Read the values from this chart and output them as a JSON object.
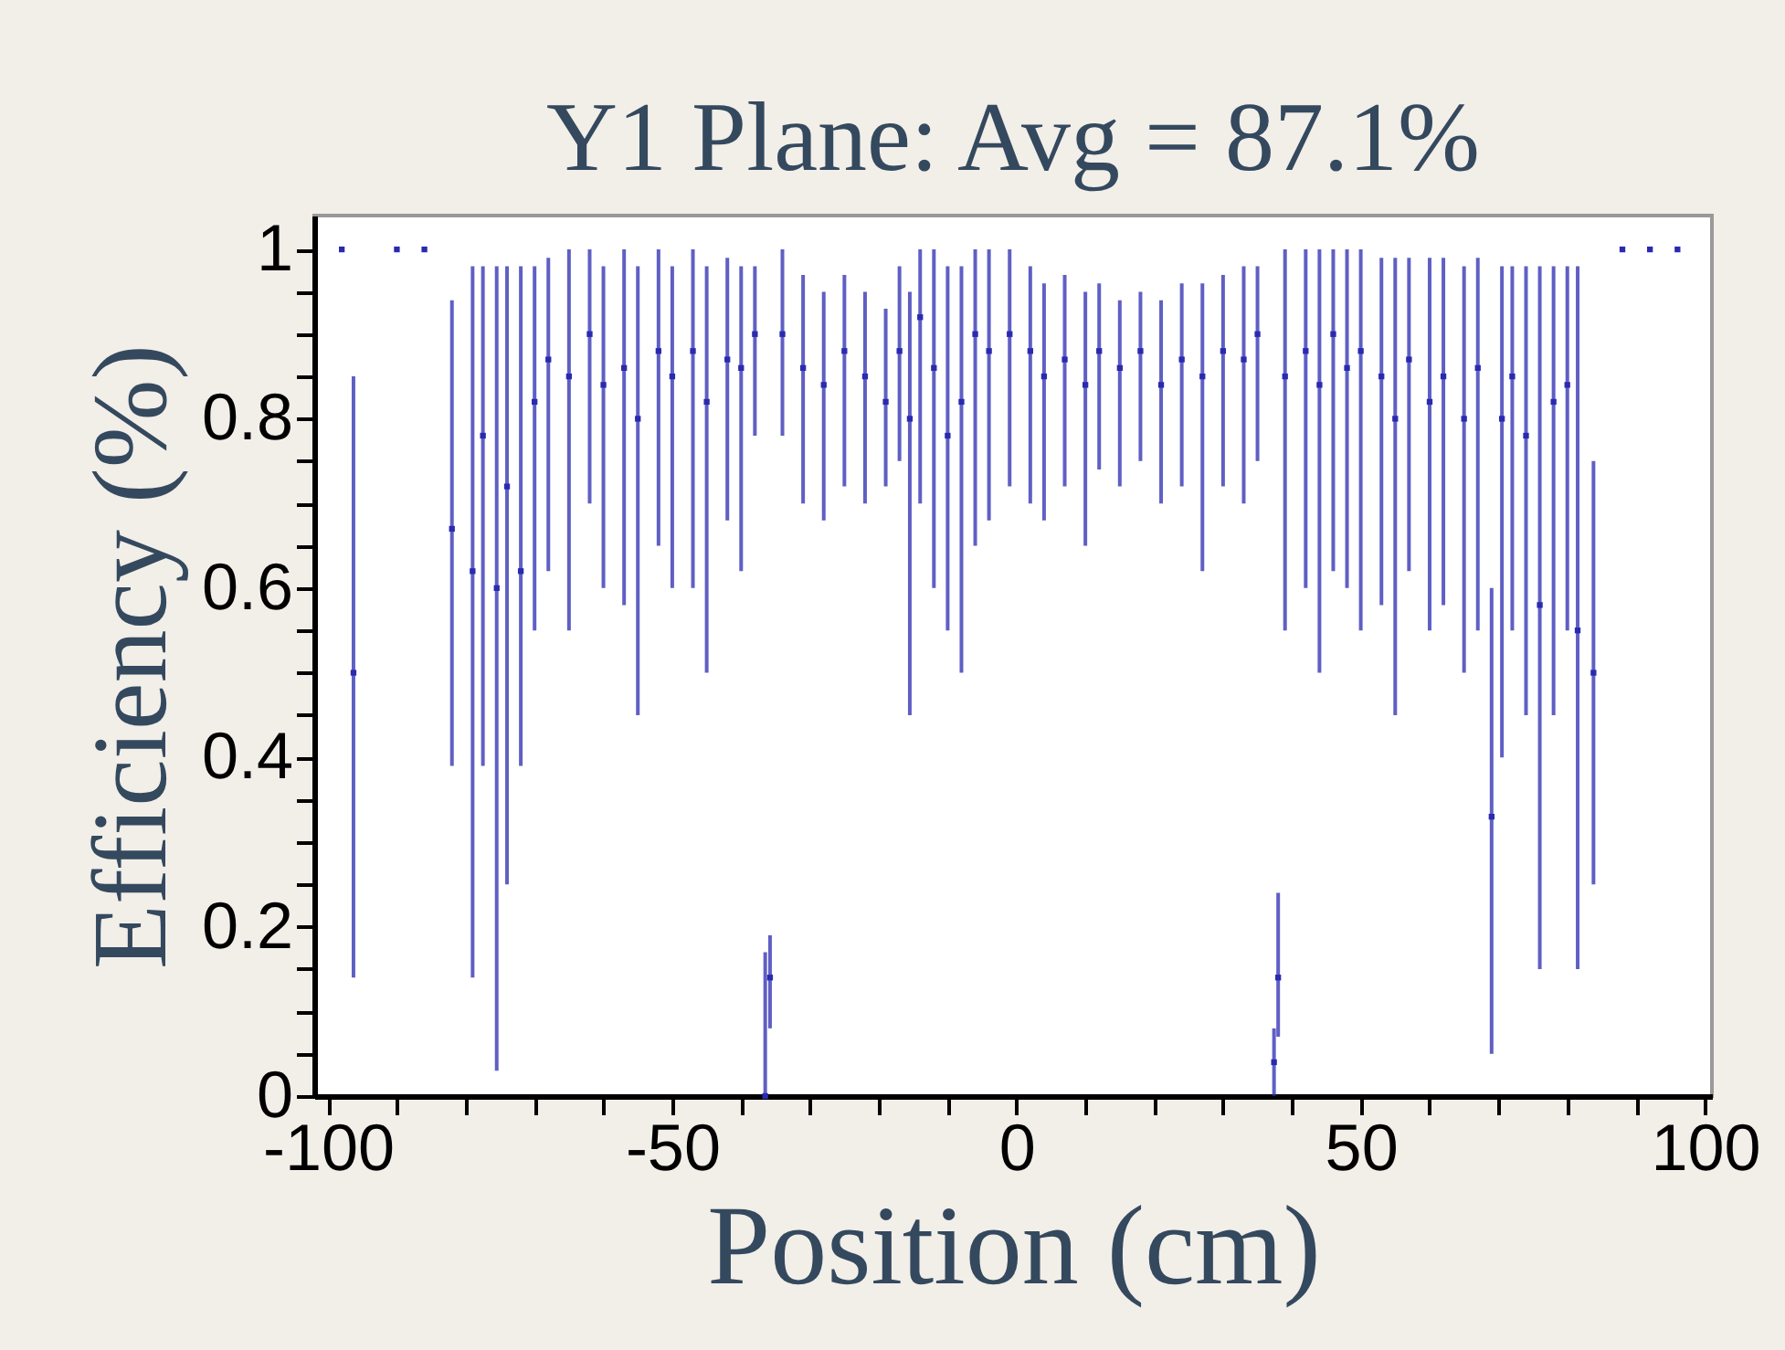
{
  "chart_data": {
    "type": "scatter",
    "title": "Y1 Plane: Avg = 87.1%",
    "xlabel": "Position (cm)",
    "ylabel": "Efficiency (%)",
    "xlim": [
      -102,
      101
    ],
    "ylim": [
      0,
      1.04
    ],
    "xticks": [
      -100,
      {
        "value": -90,
        "label": null
      },
      {
        "value": -80,
        "label": null
      },
      {
        "value": -70,
        "label": null
      },
      {
        "value": -60,
        "label": null
      },
      -50,
      {
        "value": -40,
        "label": null
      },
      {
        "value": -30,
        "label": null
      },
      {
        "value": -20,
        "label": null
      },
      {
        "value": -10,
        "label": null
      },
      0,
      {
        "value": 10,
        "label": null
      },
      {
        "value": 20,
        "label": null
      },
      {
        "value": 30,
        "label": null
      },
      {
        "value": 40,
        "label": null
      },
      50,
      {
        "value": 60,
        "label": null
      },
      {
        "value": 70,
        "label": null
      },
      {
        "value": 80,
        "label": null
      },
      {
        "value": 90,
        "label": null
      },
      100
    ],
    "yticks": [
      0,
      {
        "value": 0.05,
        "label": null
      },
      {
        "value": 0.1,
        "label": null
      },
      {
        "value": 0.15,
        "label": null
      },
      0.2,
      {
        "value": 0.25,
        "label": null
      },
      {
        "value": 0.3,
        "label": null
      },
      {
        "value": 0.35,
        "label": null
      },
      0.4,
      {
        "value": 0.45,
        "label": null
      },
      {
        "value": 0.5,
        "label": null
      },
      {
        "value": 0.55,
        "label": null
      },
      0.6,
      {
        "value": 0.65,
        "label": null
      },
      {
        "value": 0.7,
        "label": null
      },
      {
        "value": 0.75,
        "label": null
      },
      0.8,
      {
        "value": 0.85,
        "label": null
      },
      {
        "value": 0.9,
        "label": null
      },
      {
        "value": 0.95,
        "label": null
      },
      1
    ],
    "grid": false,
    "marker": "square",
    "series": [
      {
        "color": "#2a2ab0",
        "x": [
          -98,
          -96.3,
          -90,
          -86,
          -82,
          -79,
          -77.5,
          -75.5,
          -74,
          -72,
          -70,
          -68,
          -65,
          -62,
          -60,
          -57,
          -55,
          -52,
          -50,
          -47,
          -45,
          -42,
          -40,
          -38,
          -36.5,
          -35.8,
          -34,
          -31,
          -28,
          -25,
          -22,
          -19,
          -17,
          -15.5,
          -14,
          -12,
          -10,
          -8,
          -6,
          -4,
          -1,
          2,
          4,
          7,
          10,
          12,
          15,
          18,
          21,
          24,
          27,
          30,
          33,
          35,
          37.4,
          38,
          39,
          42,
          44,
          46,
          48,
          50,
          53,
          55,
          57,
          60,
          62,
          65,
          67,
          69,
          70.5,
          72,
          74,
          76,
          78,
          80,
          81.5,
          83.8,
          88,
          92,
          96
        ],
        "values": [
          1,
          0.5,
          1,
          1,
          0.67,
          0.62,
          0.78,
          0.6,
          0.72,
          0.62,
          0.82,
          0.87,
          0.85,
          0.9,
          0.84,
          0.86,
          0.8,
          0.88,
          0.85,
          0.88,
          0.82,
          0.87,
          0.86,
          0.9,
          0,
          0.14,
          0.9,
          0.86,
          0.84,
          0.88,
          0.85,
          0.82,
          0.88,
          0.8,
          0.92,
          0.86,
          0.78,
          0.82,
          0.9,
          0.88,
          0.9,
          0.88,
          0.85,
          0.87,
          0.84,
          0.88,
          0.86,
          0.88,
          0.84,
          0.87,
          0.85,
          0.88,
          0.87,
          0.9,
          0.04,
          0.14,
          0.85,
          0.88,
          0.84,
          0.9,
          0.86,
          0.88,
          0.85,
          0.8,
          0.87,
          0.82,
          0.85,
          0.8,
          0.86,
          0.33,
          0.8,
          0.85,
          0.78,
          0.58,
          0.82,
          0.84,
          0.55,
          0.5,
          1,
          1,
          1
        ],
        "errors": [
          null,
          [
            0.14,
            0.85
          ],
          null,
          null,
          [
            0.39,
            0.94
          ],
          [
            0.14,
            0.98
          ],
          [
            0.39,
            0.98
          ],
          [
            0.03,
            0.98
          ],
          [
            0.25,
            0.98
          ],
          [
            0.39,
            0.98
          ],
          [
            0.55,
            0.98
          ],
          [
            0.62,
            0.99
          ],
          [
            0.55,
            1
          ],
          [
            0.7,
            1
          ],
          [
            0.6,
            0.98
          ],
          [
            0.58,
            1
          ],
          [
            0.45,
            0.98
          ],
          [
            0.65,
            1
          ],
          [
            0.6,
            0.98
          ],
          [
            0.6,
            1
          ],
          [
            0.5,
            0.98
          ],
          [
            0.68,
            0.99
          ],
          [
            0.62,
            0.98
          ],
          [
            0.78,
            0.98
          ],
          [
            0,
            0.17
          ],
          [
            0.08,
            0.19
          ],
          [
            0.78,
            1
          ],
          [
            0.7,
            0.97
          ],
          [
            0.68,
            0.95
          ],
          [
            0.72,
            0.97
          ],
          [
            0.7,
            0.95
          ],
          [
            0.72,
            0.93
          ],
          [
            0.75,
            0.98
          ],
          [
            0.45,
            0.95
          ],
          [
            0.7,
            1
          ],
          [
            0.6,
            1
          ],
          [
            0.55,
            0.98
          ],
          [
            0.5,
            0.98
          ],
          [
            0.65,
            1
          ],
          [
            0.68,
            1
          ],
          [
            0.72,
            1
          ],
          [
            0.7,
            0.98
          ],
          [
            0.68,
            0.96
          ],
          [
            0.72,
            0.97
          ],
          [
            0.65,
            0.95
          ],
          [
            0.74,
            0.96
          ],
          [
            0.72,
            0.94
          ],
          [
            0.75,
            0.95
          ],
          [
            0.7,
            0.94
          ],
          [
            0.72,
            0.96
          ],
          [
            0.62,
            0.96
          ],
          [
            0.72,
            0.97
          ],
          [
            0.7,
            0.98
          ],
          [
            0.75,
            0.98
          ],
          [
            0,
            0.08
          ],
          [
            0.07,
            0.24
          ],
          [
            0.55,
            1
          ],
          [
            0.6,
            1
          ],
          [
            0.5,
            1
          ],
          [
            0.62,
            1
          ],
          [
            0.6,
            1
          ],
          [
            0.55,
            1
          ],
          [
            0.58,
            0.99
          ],
          [
            0.45,
            0.99
          ],
          [
            0.62,
            0.99
          ],
          [
            0.55,
            0.99
          ],
          [
            0.58,
            0.99
          ],
          [
            0.5,
            0.98
          ],
          [
            0.55,
            0.99
          ],
          [
            0.05,
            0.6
          ],
          [
            0.4,
            0.98
          ],
          [
            0.55,
            0.98
          ],
          [
            0.45,
            0.98
          ],
          [
            0.15,
            0.98
          ],
          [
            0.45,
            0.98
          ],
          [
            0.55,
            0.98
          ],
          [
            0.15,
            0.98
          ],
          [
            0.25,
            0.75
          ],
          null,
          null,
          null
        ]
      }
    ]
  }
}
